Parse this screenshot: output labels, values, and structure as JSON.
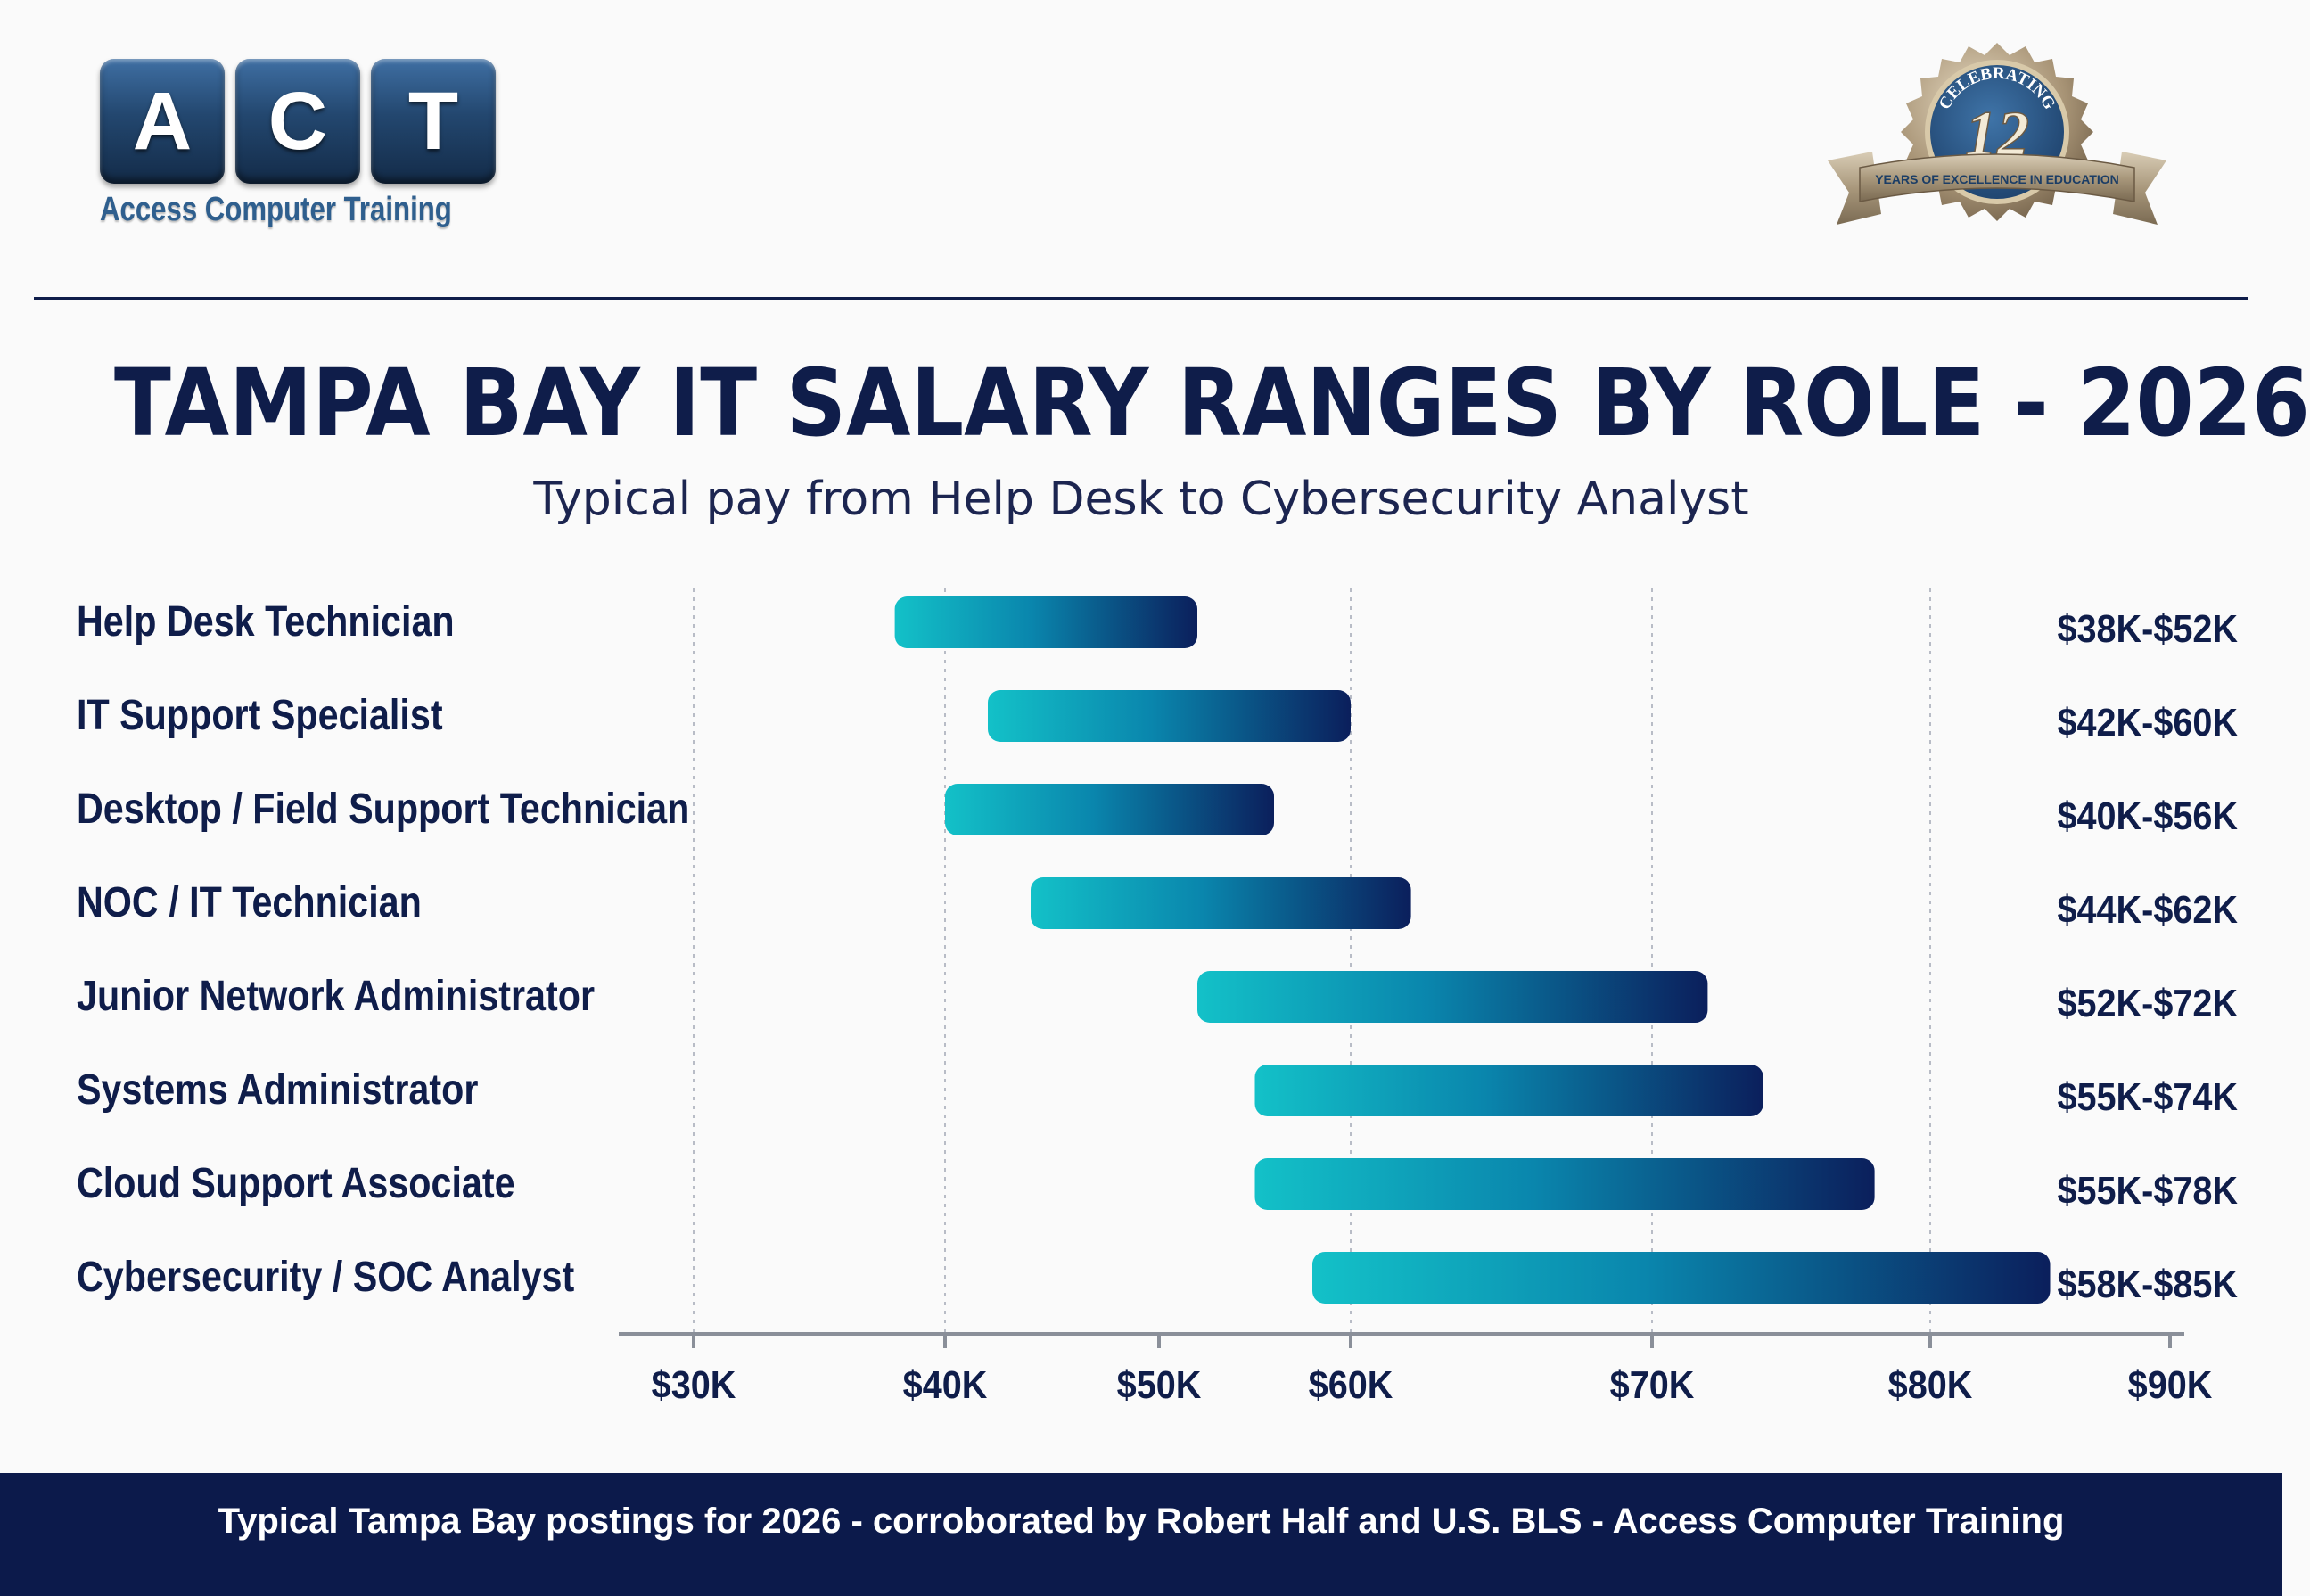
{
  "header": {
    "logo_keys": [
      "A",
      "C",
      "T"
    ],
    "logo_subtitle": "Access Computer Training",
    "badge": {
      "top_text": "CELEBRATING",
      "number": "12",
      "ribbon_text": "YEARS OF EXCELLENCE IN EDUCATION"
    }
  },
  "title": "TAMPA BAY IT SALARY RANGES BY ROLE - 2026",
  "subtitle": "Typical pay from Help Desk to Cybersecurity Analyst",
  "colors": {
    "navy": "#0f1d4a",
    "bar_start": "#13c1c8",
    "bar_end": "#0b1f5c",
    "footer_bg": "#0c1a4b"
  },
  "chart_data": {
    "type": "bar",
    "orientation": "horizontal-range",
    "title": "TAMPA BAY IT SALARY RANGES BY ROLE - 2026",
    "subtitle": "Typical pay from Help Desk to Cybersecurity Analyst",
    "xlabel": "",
    "ylabel": "",
    "x_ticks": [
      "$30K",
      "$40K",
      "$50K",
      "$60K",
      "$70K",
      "$80K",
      "$90K"
    ],
    "xlim": [
      30,
      90
    ],
    "grid": true,
    "categories": [
      "Help Desk Technician",
      "IT Support Specialist",
      "Desktop / Field Support Technician",
      "NOC / IT Technician",
      "Junior Network Administrator",
      "Systems Administrator",
      "Cloud Support Associate",
      "Cybersecurity / SOC Analyst"
    ],
    "ranges": [
      [
        38,
        52
      ],
      [
        42,
        60
      ],
      [
        40,
        56
      ],
      [
        44,
        62
      ],
      [
        52,
        72
      ],
      [
        55,
        74
      ],
      [
        55,
        78
      ],
      [
        58,
        85
      ]
    ],
    "range_labels": [
      "$38K-$52K",
      "$42K-$60K",
      "$40K-$56K",
      "$44K-$62K",
      "$52K-$72K",
      "$55K-$74K",
      "$55K-$78K",
      "$58K-$85K"
    ]
  },
  "footer": "Typical Tampa Bay postings for 2026 - corroborated by Robert Half and U.S. BLS - Access Computer Training"
}
